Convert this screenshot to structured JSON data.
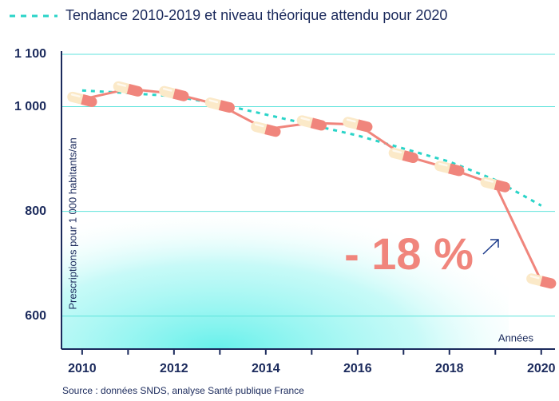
{
  "chart_data": {
    "type": "line",
    "legend": "Tendance 2010-2019 et niveau théorique attendu pour 2020",
    "y_label": "Prescriptions pour 1 000 habitants/an",
    "x_label": "Années",
    "annotation": "- 18 %",
    "source": "Source : données SNDS, analyse Santé publique France",
    "x": [
      2010,
      2011,
      2012,
      2013,
      2014,
      2015,
      2016,
      2017,
      2018,
      2019,
      2020
    ],
    "series": [
      {
        "color": "#f0857c",
        "values": [
          1014,
          1034,
          1025,
          1003,
          957,
          969,
          966,
          907,
          882,
          851,
          667
        ]
      },
      {
        "name": "Tendance 2010-2019 et niveau théorique attendu pour 2020",
        "color": "#2ad4c8",
        "dashed": true,
        "values": [
          1031,
          1026,
          1020,
          1005,
          985,
          965,
          945,
          920,
          895,
          860,
          811
        ]
      }
    ],
    "xlim": [
      2009.55,
      2020.3
    ],
    "xticks": [
      2010,
      2012,
      2014,
      2016,
      2018,
      2020
    ],
    "ylim": [
      537,
      1100
    ],
    "yticks": [
      600,
      800,
      {
        "value": 1000,
        "label": "1 000"
      },
      {
        "value": 1100,
        "label": "1 100"
      }
    ],
    "grid": true
  }
}
